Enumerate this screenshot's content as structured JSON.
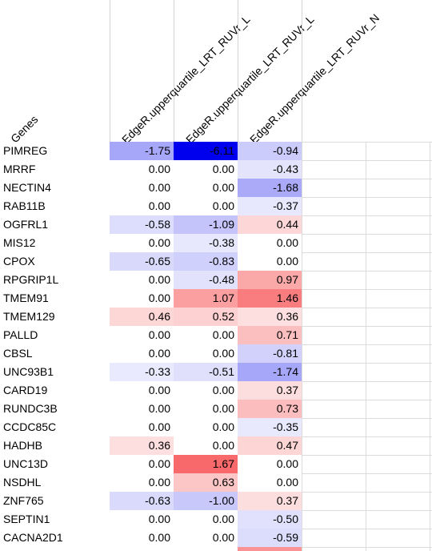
{
  "headers": {
    "genes": "Genes",
    "cols": [
      "EdgeR.upperquartile_LRT_RUVr_L",
      "EdgeR.upperquartile_LRT_RUVr_L",
      "EdgeR.upperquartile_LRT_RUVr_N"
    ]
  },
  "rows": [
    {
      "gene": "PIMREG",
      "values": [
        "-1.75",
        "-6.11",
        "-0.94"
      ]
    },
    {
      "gene": "MRRF",
      "values": [
        "0.00",
        "0.00",
        "-0.43"
      ]
    },
    {
      "gene": "NECTIN4",
      "values": [
        "0.00",
        "0.00",
        "-1.68"
      ]
    },
    {
      "gene": "RAB11B",
      "values": [
        "0.00",
        "0.00",
        "-0.37"
      ]
    },
    {
      "gene": "OGFRL1",
      "values": [
        "-0.58",
        "-1.09",
        "0.44"
      ]
    },
    {
      "gene": "MIS12",
      "values": [
        "0.00",
        "-0.38",
        "0.00"
      ]
    },
    {
      "gene": "CPOX",
      "values": [
        "-0.65",
        "-0.83",
        "0.00"
      ]
    },
    {
      "gene": "RPGRIP1L",
      "values": [
        "0.00",
        "-0.48",
        "0.97"
      ]
    },
    {
      "gene": "TMEM91",
      "values": [
        "0.00",
        "1.07",
        "1.46"
      ]
    },
    {
      "gene": "TMEM129",
      "values": [
        "0.46",
        "0.52",
        "0.36"
      ]
    },
    {
      "gene": "PALLD",
      "values": [
        "0.00",
        "0.00",
        "0.71"
      ]
    },
    {
      "gene": "CBSL",
      "values": [
        "0.00",
        "0.00",
        "-0.81"
      ]
    },
    {
      "gene": "UNC93B1",
      "values": [
        "-0.33",
        "-0.51",
        "-1.74"
      ]
    },
    {
      "gene": "CARD19",
      "values": [
        "0.00",
        "0.00",
        "0.37"
      ]
    },
    {
      "gene": "RUNDC3B",
      "values": [
        "0.00",
        "0.00",
        "0.73"
      ]
    },
    {
      "gene": "CCDC85C",
      "values": [
        "0.00",
        "0.00",
        "-0.35"
      ]
    },
    {
      "gene": "HADHB",
      "values": [
        "0.36",
        "0.00",
        "0.47"
      ]
    },
    {
      "gene": "UNC13D",
      "values": [
        "0.00",
        "1.67",
        "0.00"
      ]
    },
    {
      "gene": "NSDHL",
      "values": [
        "0.00",
        "0.63",
        "0.00"
      ]
    },
    {
      "gene": "ZNF765",
      "values": [
        "-0.63",
        "-1.00",
        "0.37"
      ]
    },
    {
      "gene": "SEPTIN1",
      "values": [
        "0.00",
        "0.00",
        "-0.50"
      ]
    },
    {
      "gene": "CACNA2D1",
      "values": [
        "0.00",
        "0.00",
        "-0.59"
      ]
    }
  ],
  "colors": {
    "negative_max": "#0000ee",
    "positive_max": "#f8696b",
    "neutral": "#ffffff",
    "gridline": "#d4d4d4"
  }
}
